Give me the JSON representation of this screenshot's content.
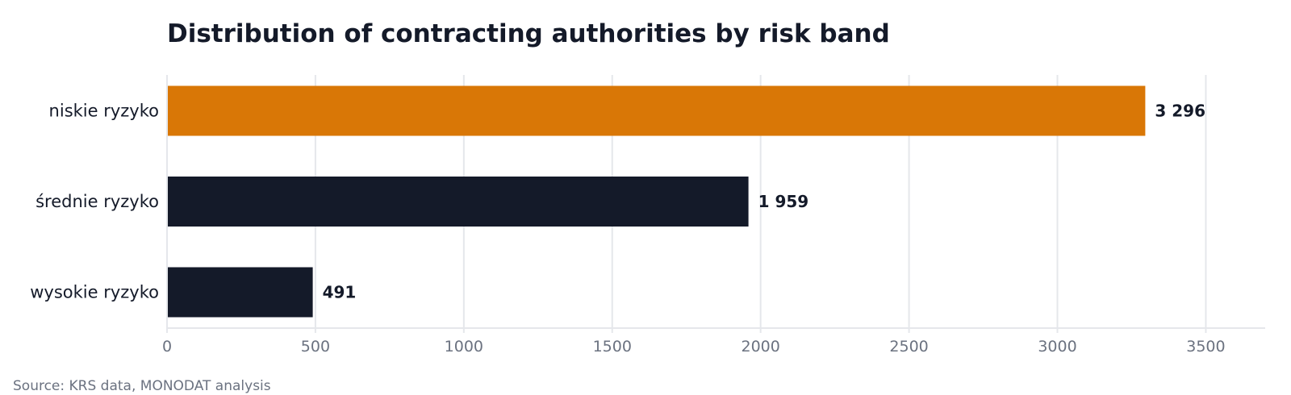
{
  "title": "Distribution of contracting authorities by risk band",
  "source": "Source: KRS data, MONODAT analysis",
  "colors": {
    "highlight": "#d97706",
    "default": "#141a29",
    "grid": "#e5e7eb",
    "tick_text": "#6b7280",
    "label_text": "#141a29"
  },
  "chart_data": {
    "type": "bar",
    "orientation": "horizontal",
    "title": "Distribution of contracting authorities by risk band",
    "categories": [
      "niskie ryzyko",
      "średnie ryzyko",
      "wysokie ryzyko"
    ],
    "values": [
      3296,
      1959,
      491
    ],
    "value_labels": [
      "3 296",
      "1 959",
      "491"
    ],
    "bar_colors": [
      "#d97706",
      "#141a29",
      "#141a29"
    ],
    "xlabel": "",
    "ylabel": "",
    "xlim": [
      0,
      3700
    ],
    "xticks": [
      0,
      500,
      1000,
      1500,
      2000,
      2500,
      3000,
      3500
    ],
    "grid": "vertical",
    "legend": "none"
  }
}
